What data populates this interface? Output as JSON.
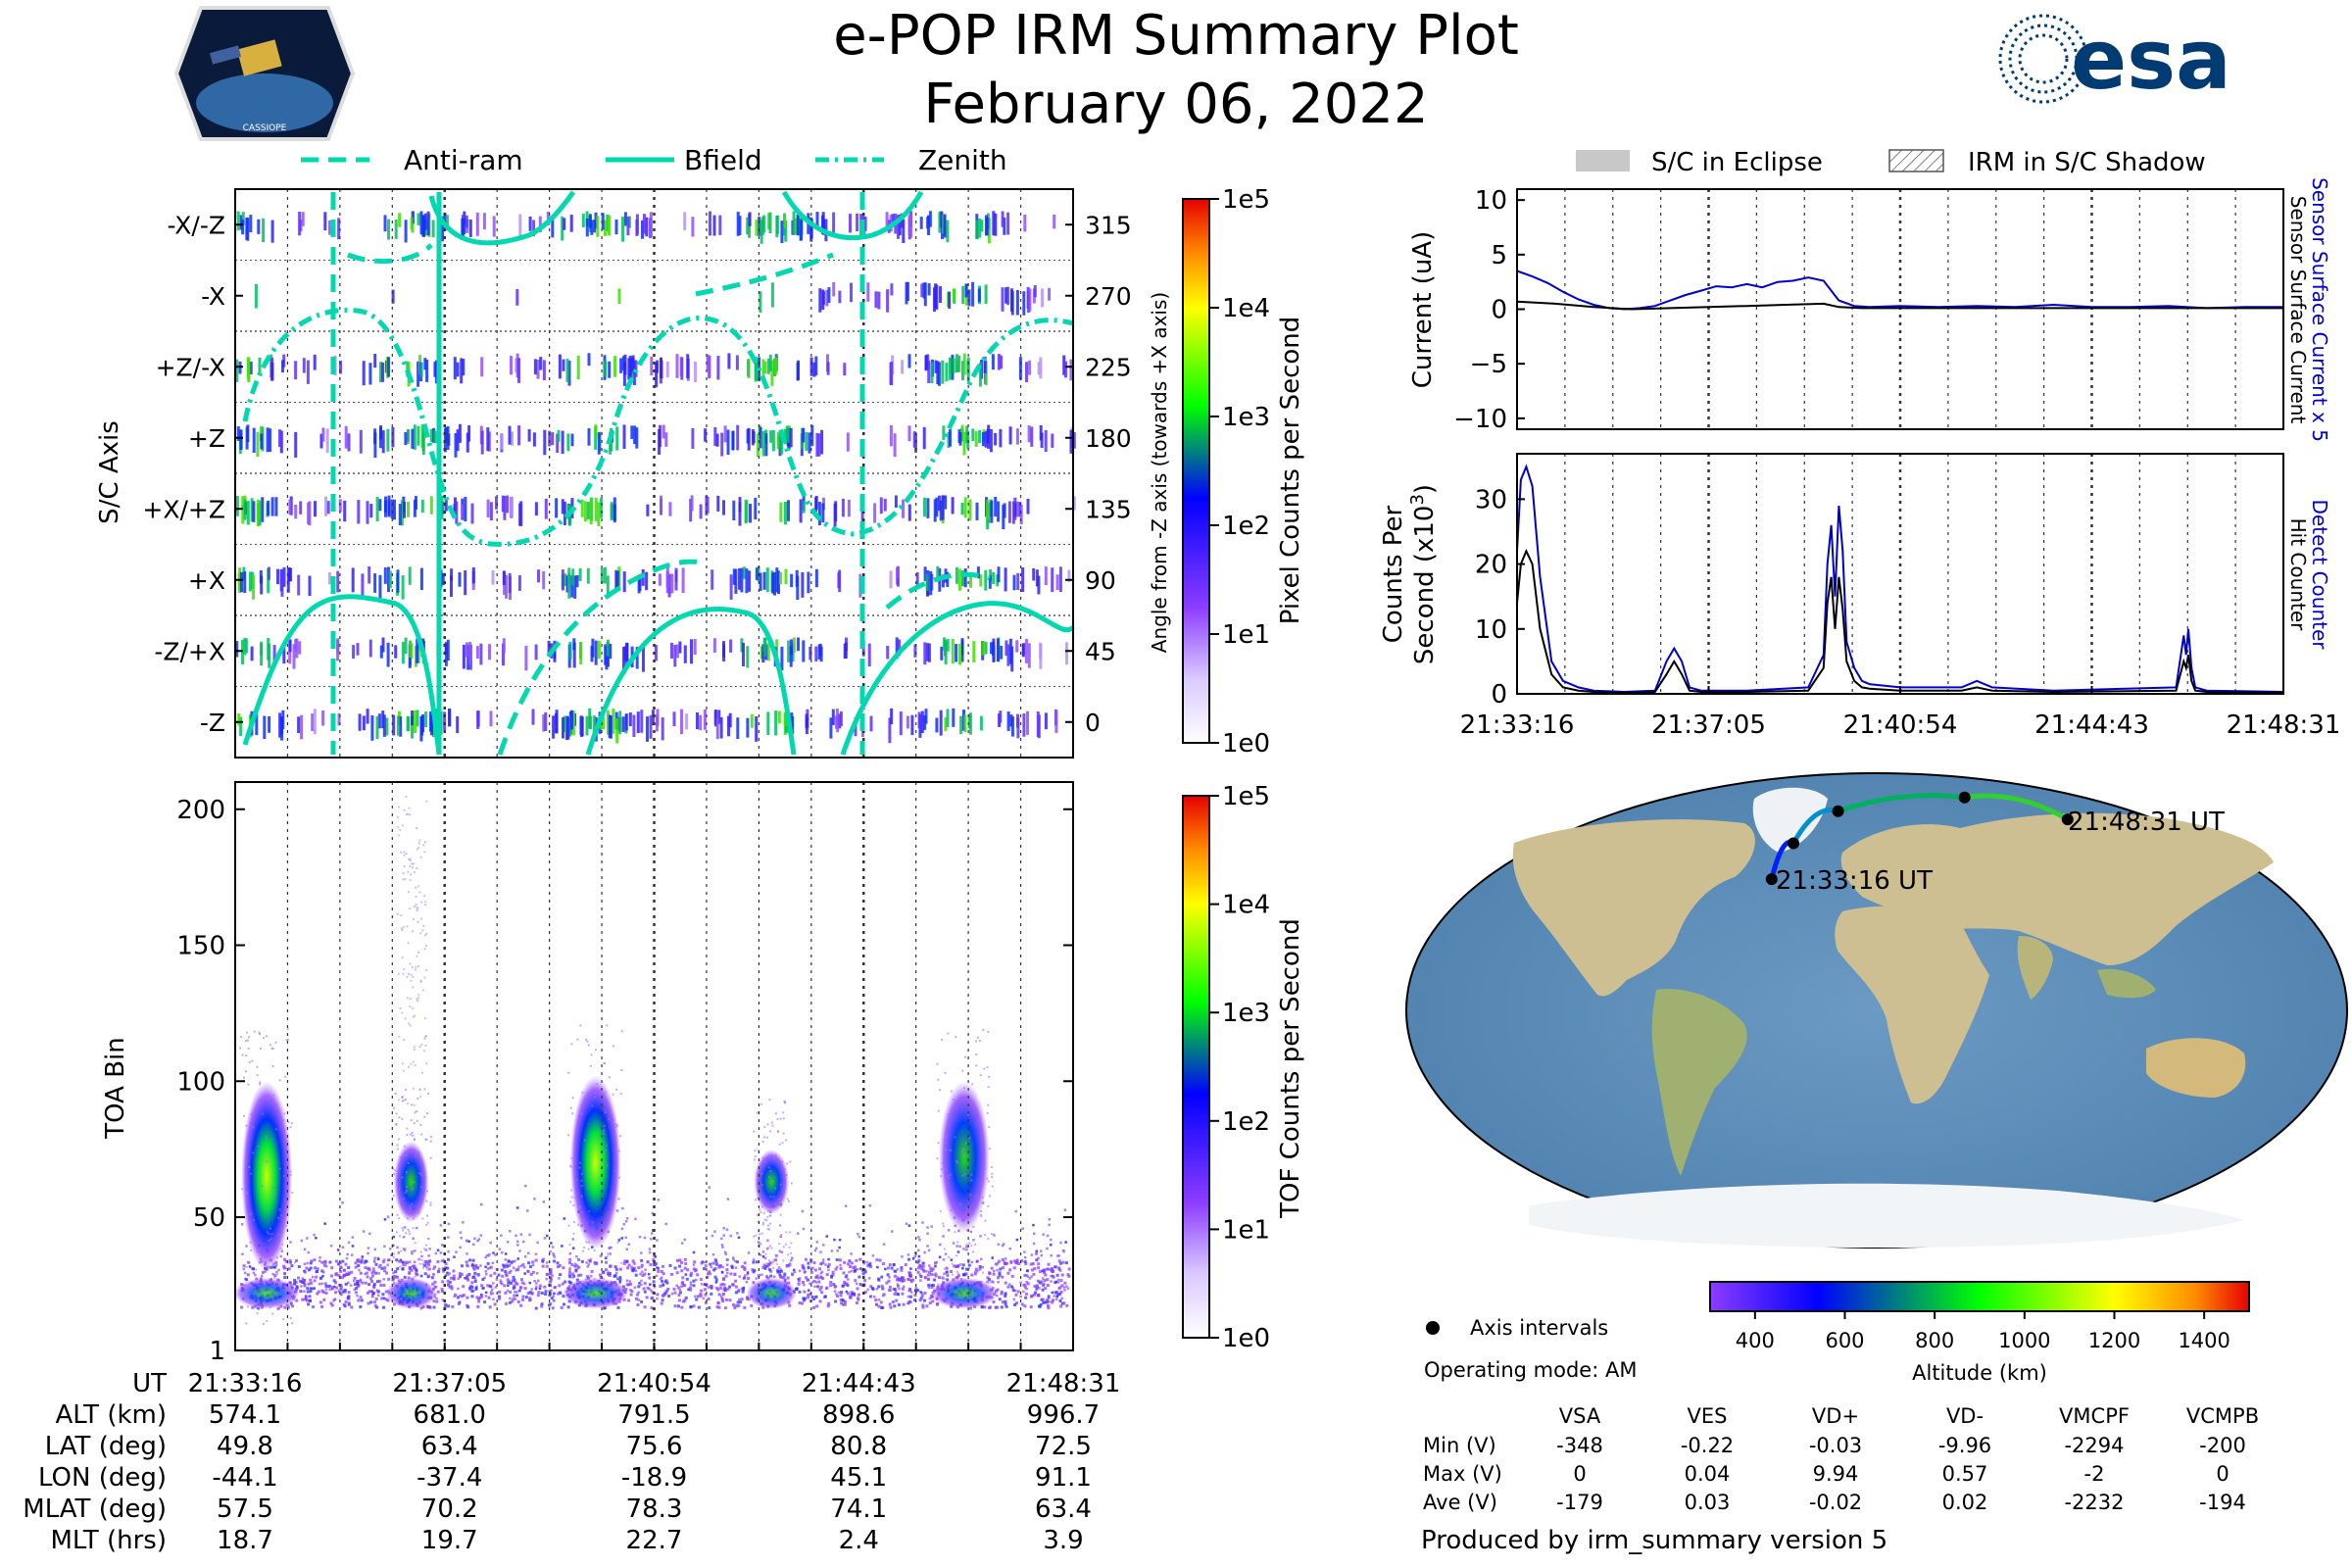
{
  "header": {
    "title": "e-POP IRM Summary Plot",
    "date": "February 06, 2022",
    "logo_left_text": "CASSIOPE",
    "logo_right_text": "esa"
  },
  "colors": {
    "guide": "#00d8b0",
    "sensor_blue": "#0000cc",
    "eclipse": "#c8c8c8",
    "land": "#cdbf92",
    "ocean": "#5d8eb8",
    "ice": "#f2f5f7"
  },
  "chart_data": [
    {
      "id": "sc_axis_spectrogram",
      "type": "heatmap",
      "ylabel": "S/C Axis",
      "ylabel_right": "Angle from -Z axis (towards +X axis)",
      "y_categories": [
        "-X/-Z",
        "-X",
        "+Z/-X",
        "+Z",
        "+X/+Z",
        "+X",
        "-Z/+X",
        "-Z"
      ],
      "y_right_ticks": [
        315,
        270,
        225,
        180,
        135,
        90,
        45,
        0
      ],
      "legend": [
        {
          "label": "Anti-ram",
          "style": "dashed"
        },
        {
          "label": "Bfield",
          "style": "solid"
        },
        {
          "label": "Zenith",
          "style": "dash-dot"
        }
      ],
      "colorbar": {
        "label": "Pixel Counts per Second",
        "ticks": [
          "1e0",
          "1e1",
          "1e2",
          "1e3",
          "1e4",
          "1e5"
        ]
      },
      "bursts_x": [
        0.0,
        0.21,
        0.43,
        0.64,
        0.87
      ]
    },
    {
      "id": "toa_spectrogram",
      "type": "heatmap",
      "ylabel": "TOA Bin",
      "ylim": [
        1,
        210
      ],
      "yticks": [
        1,
        50,
        100,
        150,
        200
      ],
      "colorbar": {
        "label": "TOF Counts per Second",
        "ticks": [
          "1e0",
          "1e1",
          "1e2",
          "1e3",
          "1e4",
          "1e5"
        ]
      },
      "blobs": [
        {
          "x": 0.02,
          "center_bin": 65,
          "halfwidth_bin": 35,
          "peak": "yellow-green"
        },
        {
          "x": 0.21,
          "center_bin": 63,
          "halfwidth_bin": 15,
          "peak": "green"
        },
        {
          "x": 0.43,
          "center_bin": 70,
          "halfwidth_bin": 32,
          "peak": "yellow-green"
        },
        {
          "x": 0.64,
          "center_bin": 63,
          "halfwidth_bin": 12,
          "peak": "green"
        },
        {
          "x": 0.87,
          "center_bin": 72,
          "halfwidth_bin": 28,
          "peak": "green"
        }
      ]
    },
    {
      "id": "current",
      "type": "line",
      "ylabel": "Current (uA)",
      "ylim": [
        -11,
        11
      ],
      "yticks": [
        10,
        5,
        0,
        -5,
        -10
      ],
      "right_label_blue": "Sensor Surface Current x 5",
      "right_label_black": "Sensor Surface Current",
      "legend": [
        "S/C in Eclipse",
        "IRM in S/C Shadow"
      ],
      "series": [
        {
          "name": "Sensor Surface Current x 5",
          "color": "blue",
          "x": [
            0,
            0.02,
            0.04,
            0.06,
            0.08,
            0.1,
            0.12,
            0.14,
            0.16,
            0.18,
            0.2,
            0.22,
            0.24,
            0.26,
            0.28,
            0.3,
            0.32,
            0.34,
            0.36,
            0.38,
            0.4,
            0.42,
            0.44,
            0.46,
            0.5,
            0.55,
            0.6,
            0.65,
            0.7,
            0.75,
            0.8,
            0.85,
            0.9,
            0.95,
            1.0
          ],
          "y": [
            3.5,
            3.0,
            2.4,
            1.6,
            0.9,
            0.4,
            0.1,
            0.0,
            0.1,
            0.3,
            0.8,
            1.3,
            1.7,
            2.1,
            2.0,
            2.3,
            2.0,
            2.5,
            2.6,
            2.9,
            2.6,
            0.8,
            0.3,
            0.2,
            0.3,
            0.2,
            0.3,
            0.2,
            0.4,
            0.2,
            0.2,
            0.3,
            0.1,
            0.2,
            0.2
          ]
        },
        {
          "name": "Sensor Surface Current",
          "color": "black",
          "x": [
            0,
            0.05,
            0.1,
            0.15,
            0.2,
            0.25,
            0.3,
            0.35,
            0.4,
            0.42,
            0.45,
            0.5,
            0.6,
            0.7,
            0.8,
            0.9,
            1.0
          ],
          "y": [
            0.7,
            0.5,
            0.2,
            0.0,
            0.1,
            0.2,
            0.3,
            0.4,
            0.5,
            0.2,
            0.1,
            0.1,
            0.1,
            0.1,
            0.1,
            0.1,
            0.1
          ]
        }
      ]
    },
    {
      "id": "counts",
      "type": "line",
      "ylabel": "Counts Per Second (x10³)",
      "ylim": [
        0,
        37
      ],
      "yticks": [
        0,
        10,
        20,
        30
      ],
      "right_label_blue": "Detect Counter",
      "right_label_black": "Hit Counter",
      "xticks": [
        "21:33:16",
        "21:37:05",
        "21:40:54",
        "21:44:43",
        "21:48:31"
      ],
      "series": [
        {
          "name": "Detect Counter",
          "color": "blue",
          "x": [
            0,
            0.005,
            0.012,
            0.02,
            0.03,
            0.045,
            0.06,
            0.08,
            0.1,
            0.14,
            0.18,
            0.195,
            0.205,
            0.215,
            0.225,
            0.24,
            0.3,
            0.38,
            0.4,
            0.405,
            0.41,
            0.415,
            0.42,
            0.425,
            0.43,
            0.44,
            0.45,
            0.46,
            0.5,
            0.58,
            0.6,
            0.62,
            0.7,
            0.86,
            0.87,
            0.873,
            0.876,
            0.88,
            0.885,
            0.9,
            1.0
          ],
          "y": [
            22,
            33,
            35,
            32,
            18,
            5,
            2,
            1,
            0.5,
            0.3,
            0.5,
            5,
            7,
            5,
            1,
            0.5,
            0.5,
            1,
            6,
            20,
            26,
            15,
            29,
            22,
            8,
            4,
            2,
            1.5,
            1,
            1,
            2,
            1,
            0.5,
            1,
            9,
            6,
            10,
            4,
            1,
            0.5,
            0.3
          ]
        },
        {
          "name": "Hit Counter",
          "color": "black",
          "x": [
            0,
            0.005,
            0.012,
            0.02,
            0.03,
            0.045,
            0.06,
            0.08,
            0.1,
            0.14,
            0.18,
            0.195,
            0.205,
            0.215,
            0.225,
            0.24,
            0.3,
            0.38,
            0.4,
            0.405,
            0.41,
            0.415,
            0.42,
            0.425,
            0.43,
            0.44,
            0.45,
            0.46,
            0.5,
            0.58,
            0.6,
            0.62,
            0.7,
            0.86,
            0.87,
            0.873,
            0.876,
            0.88,
            0.885,
            0.9,
            1.0
          ],
          "y": [
            14,
            20,
            22,
            20,
            10,
            3,
            1,
            0.5,
            0.3,
            0.2,
            0.3,
            3,
            5,
            3,
            0.5,
            0.3,
            0.3,
            0.5,
            4,
            14,
            18,
            10,
            18,
            13,
            5,
            2,
            1,
            0.8,
            0.5,
            0.5,
            1,
            0.5,
            0.3,
            0.5,
            5,
            4,
            6,
            2,
            0.5,
            0.3,
            0.2
          ]
        }
      ]
    }
  ],
  "map": {
    "start_label": "21:33:16 UT",
    "end_label": "21:48:31 UT",
    "track": [
      [
        -44.1,
        49.8
      ],
      [
        -37.4,
        63.4
      ],
      [
        -18.9,
        75.6
      ],
      [
        45.1,
        80.8
      ],
      [
        91.1,
        72.5
      ]
    ],
    "colorbar": {
      "label": "Altitude (km)",
      "min": 300,
      "max": 1500,
      "ticks": [
        400,
        600,
        800,
        1000,
        1200,
        1400
      ]
    },
    "axis_intervals_label": "Axis intervals",
    "operating_mode": "Operating mode: AM"
  },
  "time_table": {
    "rows": [
      {
        "label": "UT",
        "values": [
          "21:33:16",
          "21:37:05",
          "21:40:54",
          "21:44:43",
          "21:48:31"
        ]
      },
      {
        "label": "ALT (km)",
        "values": [
          "574.1",
          "681.0",
          "791.5",
          "898.6",
          "996.7"
        ]
      },
      {
        "label": "LAT (deg)",
        "values": [
          "49.8",
          "63.4",
          "75.6",
          "80.8",
          "72.5"
        ]
      },
      {
        "label": "LON (deg)",
        "values": [
          "-44.1",
          "-37.4",
          "-18.9",
          "45.1",
          "91.1"
        ]
      },
      {
        "label": "MLAT (deg)",
        "values": [
          "57.5",
          "70.2",
          "78.3",
          "74.1",
          "63.4"
        ]
      },
      {
        "label": "MLT (hrs)",
        "values": [
          "18.7",
          "19.7",
          "22.7",
          "2.4",
          "3.9"
        ]
      }
    ]
  },
  "voltage_table": {
    "columns": [
      "VSA",
      "VES",
      "VD+",
      "VD-",
      "VMCPF",
      "VCMPB"
    ],
    "rows": [
      {
        "label": "Min (V)",
        "values": [
          "-348",
          "-0.22",
          "-0.03",
          "-9.96",
          "-2294",
          "-200"
        ]
      },
      {
        "label": "Max (V)",
        "values": [
          "0",
          "0.04",
          "9.94",
          "0.57",
          "-2",
          "0"
        ]
      },
      {
        "label": "Ave (V)",
        "values": [
          "-179",
          "0.03",
          "-0.02",
          "0.02",
          "-2232",
          "-194"
        ]
      }
    ]
  },
  "footer": "Produced by irm_summary version 5"
}
